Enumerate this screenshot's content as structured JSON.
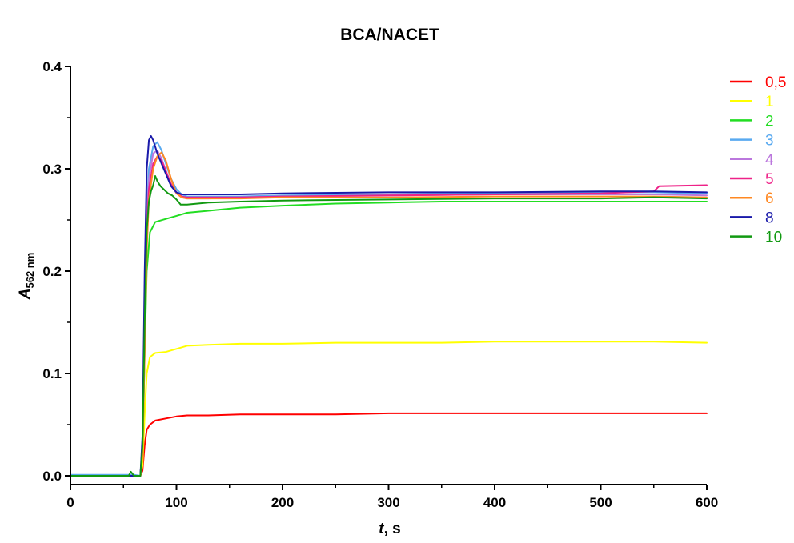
{
  "chart_data": {
    "type": "line",
    "title": "BCA/NACET",
    "xlabel_main": "t",
    "xlabel_unit": ", s",
    "ylabel_main": "A",
    "ylabel_sub": "562 nm",
    "xlim": [
      0,
      600
    ],
    "ylim": [
      0,
      0.4
    ],
    "x_ticks": [
      0,
      100,
      200,
      300,
      400,
      500,
      600
    ],
    "x_tick_labels": [
      "0",
      "100",
      "200",
      "300",
      "400",
      "500",
      "600"
    ],
    "y_ticks": [
      0,
      0.1,
      0.2,
      0.3,
      0.4
    ],
    "y_tick_labels": [
      "0.0",
      "0.1",
      "0.2",
      "0.3",
      "0.4"
    ],
    "grid": false,
    "legend_position": "right",
    "series": [
      {
        "name": "0,5",
        "color": "#ff0000",
        "x": [
          0,
          60,
          66,
          68,
          70,
          72,
          75,
          80,
          90,
          100,
          110,
          130,
          160,
          200,
          250,
          300,
          350,
          400,
          450,
          500,
          550,
          600
        ],
        "y": [
          0,
          0,
          0,
          0.005,
          0.03,
          0.045,
          0.05,
          0.054,
          0.056,
          0.058,
          0.059,
          0.059,
          0.06,
          0.06,
          0.06,
          0.061,
          0.061,
          0.061,
          0.061,
          0.061,
          0.061,
          0.061
        ]
      },
      {
        "name": "1",
        "color": "#ffff00",
        "x": [
          0,
          60,
          66,
          68,
          70,
          72,
          75,
          80,
          90,
          100,
          110,
          130,
          160,
          200,
          250,
          300,
          350,
          400,
          450,
          500,
          550,
          600
        ],
        "y": [
          0,
          0,
          0,
          0.01,
          0.06,
          0.1,
          0.116,
          0.12,
          0.121,
          0.124,
          0.127,
          0.128,
          0.129,
          0.129,
          0.13,
          0.13,
          0.13,
          0.131,
          0.131,
          0.131,
          0.131,
          0.13
        ]
      },
      {
        "name": "2",
        "color": "#22dd22",
        "x": [
          0,
          60,
          66,
          68,
          70,
          72,
          75,
          80,
          90,
          100,
          110,
          130,
          160,
          200,
          250,
          300,
          350,
          400,
          450,
          500,
          550,
          600
        ],
        "y": [
          0,
          0,
          0,
          0.02,
          0.12,
          0.2,
          0.238,
          0.248,
          0.251,
          0.254,
          0.257,
          0.259,
          0.262,
          0.264,
          0.266,
          0.267,
          0.268,
          0.268,
          0.268,
          0.268,
          0.268,
          0.268
        ]
      },
      {
        "name": "3",
        "color": "#5aaaf0",
        "x": [
          0,
          60,
          66,
          68,
          70,
          72,
          74,
          78,
          82,
          86,
          90,
          95,
          100,
          105,
          110,
          130,
          160,
          200,
          300,
          400,
          500,
          550,
          600
        ],
        "y": [
          0.001,
          0.001,
          0,
          0.03,
          0.15,
          0.26,
          0.3,
          0.322,
          0.326,
          0.318,
          0.305,
          0.29,
          0.28,
          0.275,
          0.273,
          0.273,
          0.273,
          0.274,
          0.275,
          0.276,
          0.277,
          0.277,
          0.276
        ]
      },
      {
        "name": "4",
        "color": "#bb77dd",
        "x": [
          0,
          60,
          66,
          68,
          70,
          72,
          74,
          78,
          82,
          86,
          90,
          95,
          100,
          105,
          110,
          130,
          160,
          200,
          300,
          400,
          500,
          550,
          600
        ],
        "y": [
          0,
          0,
          0,
          0.03,
          0.14,
          0.25,
          0.29,
          0.315,
          0.318,
          0.31,
          0.298,
          0.284,
          0.276,
          0.272,
          0.271,
          0.271,
          0.272,
          0.273,
          0.274,
          0.275,
          0.275,
          0.275,
          0.274
        ]
      },
      {
        "name": "5",
        "color": "#ee2288",
        "x": [
          0,
          60,
          66,
          68,
          70,
          72,
          74,
          78,
          82,
          86,
          90,
          95,
          100,
          105,
          110,
          130,
          160,
          200,
          300,
          400,
          500,
          550,
          555,
          600
        ],
        "y": [
          0,
          0,
          0,
          0.03,
          0.14,
          0.24,
          0.28,
          0.305,
          0.312,
          0.308,
          0.298,
          0.285,
          0.277,
          0.273,
          0.272,
          0.272,
          0.272,
          0.273,
          0.274,
          0.275,
          0.276,
          0.278,
          0.283,
          0.284
        ]
      },
      {
        "name": "6",
        "color": "#ff8822",
        "x": [
          0,
          60,
          66,
          68,
          70,
          72,
          74,
          78,
          82,
          86,
          90,
          95,
          100,
          105,
          110,
          130,
          160,
          200,
          300,
          400,
          500,
          550,
          600
        ],
        "y": [
          0,
          0,
          0,
          0.02,
          0.12,
          0.22,
          0.27,
          0.3,
          0.312,
          0.316,
          0.308,
          0.29,
          0.276,
          0.272,
          0.271,
          0.271,
          0.271,
          0.272,
          0.272,
          0.273,
          0.273,
          0.273,
          0.272
        ]
      },
      {
        "name": "8",
        "color": "#1a1aaa",
        "x": [
          0,
          60,
          66,
          68,
          70,
          72,
          74,
          76,
          78,
          82,
          86,
          90,
          95,
          100,
          105,
          110,
          130,
          160,
          200,
          300,
          400,
          500,
          550,
          600
        ],
        "y": [
          0,
          0,
          0,
          0.04,
          0.2,
          0.3,
          0.328,
          0.332,
          0.328,
          0.315,
          0.305,
          0.295,
          0.283,
          0.277,
          0.275,
          0.275,
          0.275,
          0.275,
          0.276,
          0.277,
          0.277,
          0.278,
          0.278,
          0.277
        ]
      },
      {
        "name": "10",
        "color": "#119911",
        "x": [
          0,
          55,
          57,
          60,
          66,
          68,
          70,
          72,
          74,
          76,
          78,
          80,
          82,
          85,
          88,
          92,
          96,
          100,
          104,
          110,
          130,
          160,
          200,
          300,
          400,
          500,
          550,
          600
        ],
        "y": [
          0,
          0,
          0.004,
          0,
          0,
          0.03,
          0.15,
          0.24,
          0.268,
          0.278,
          0.284,
          0.293,
          0.288,
          0.283,
          0.28,
          0.276,
          0.274,
          0.27,
          0.265,
          0.265,
          0.267,
          0.268,
          0.269,
          0.27,
          0.271,
          0.271,
          0.272,
          0.271
        ]
      }
    ]
  }
}
